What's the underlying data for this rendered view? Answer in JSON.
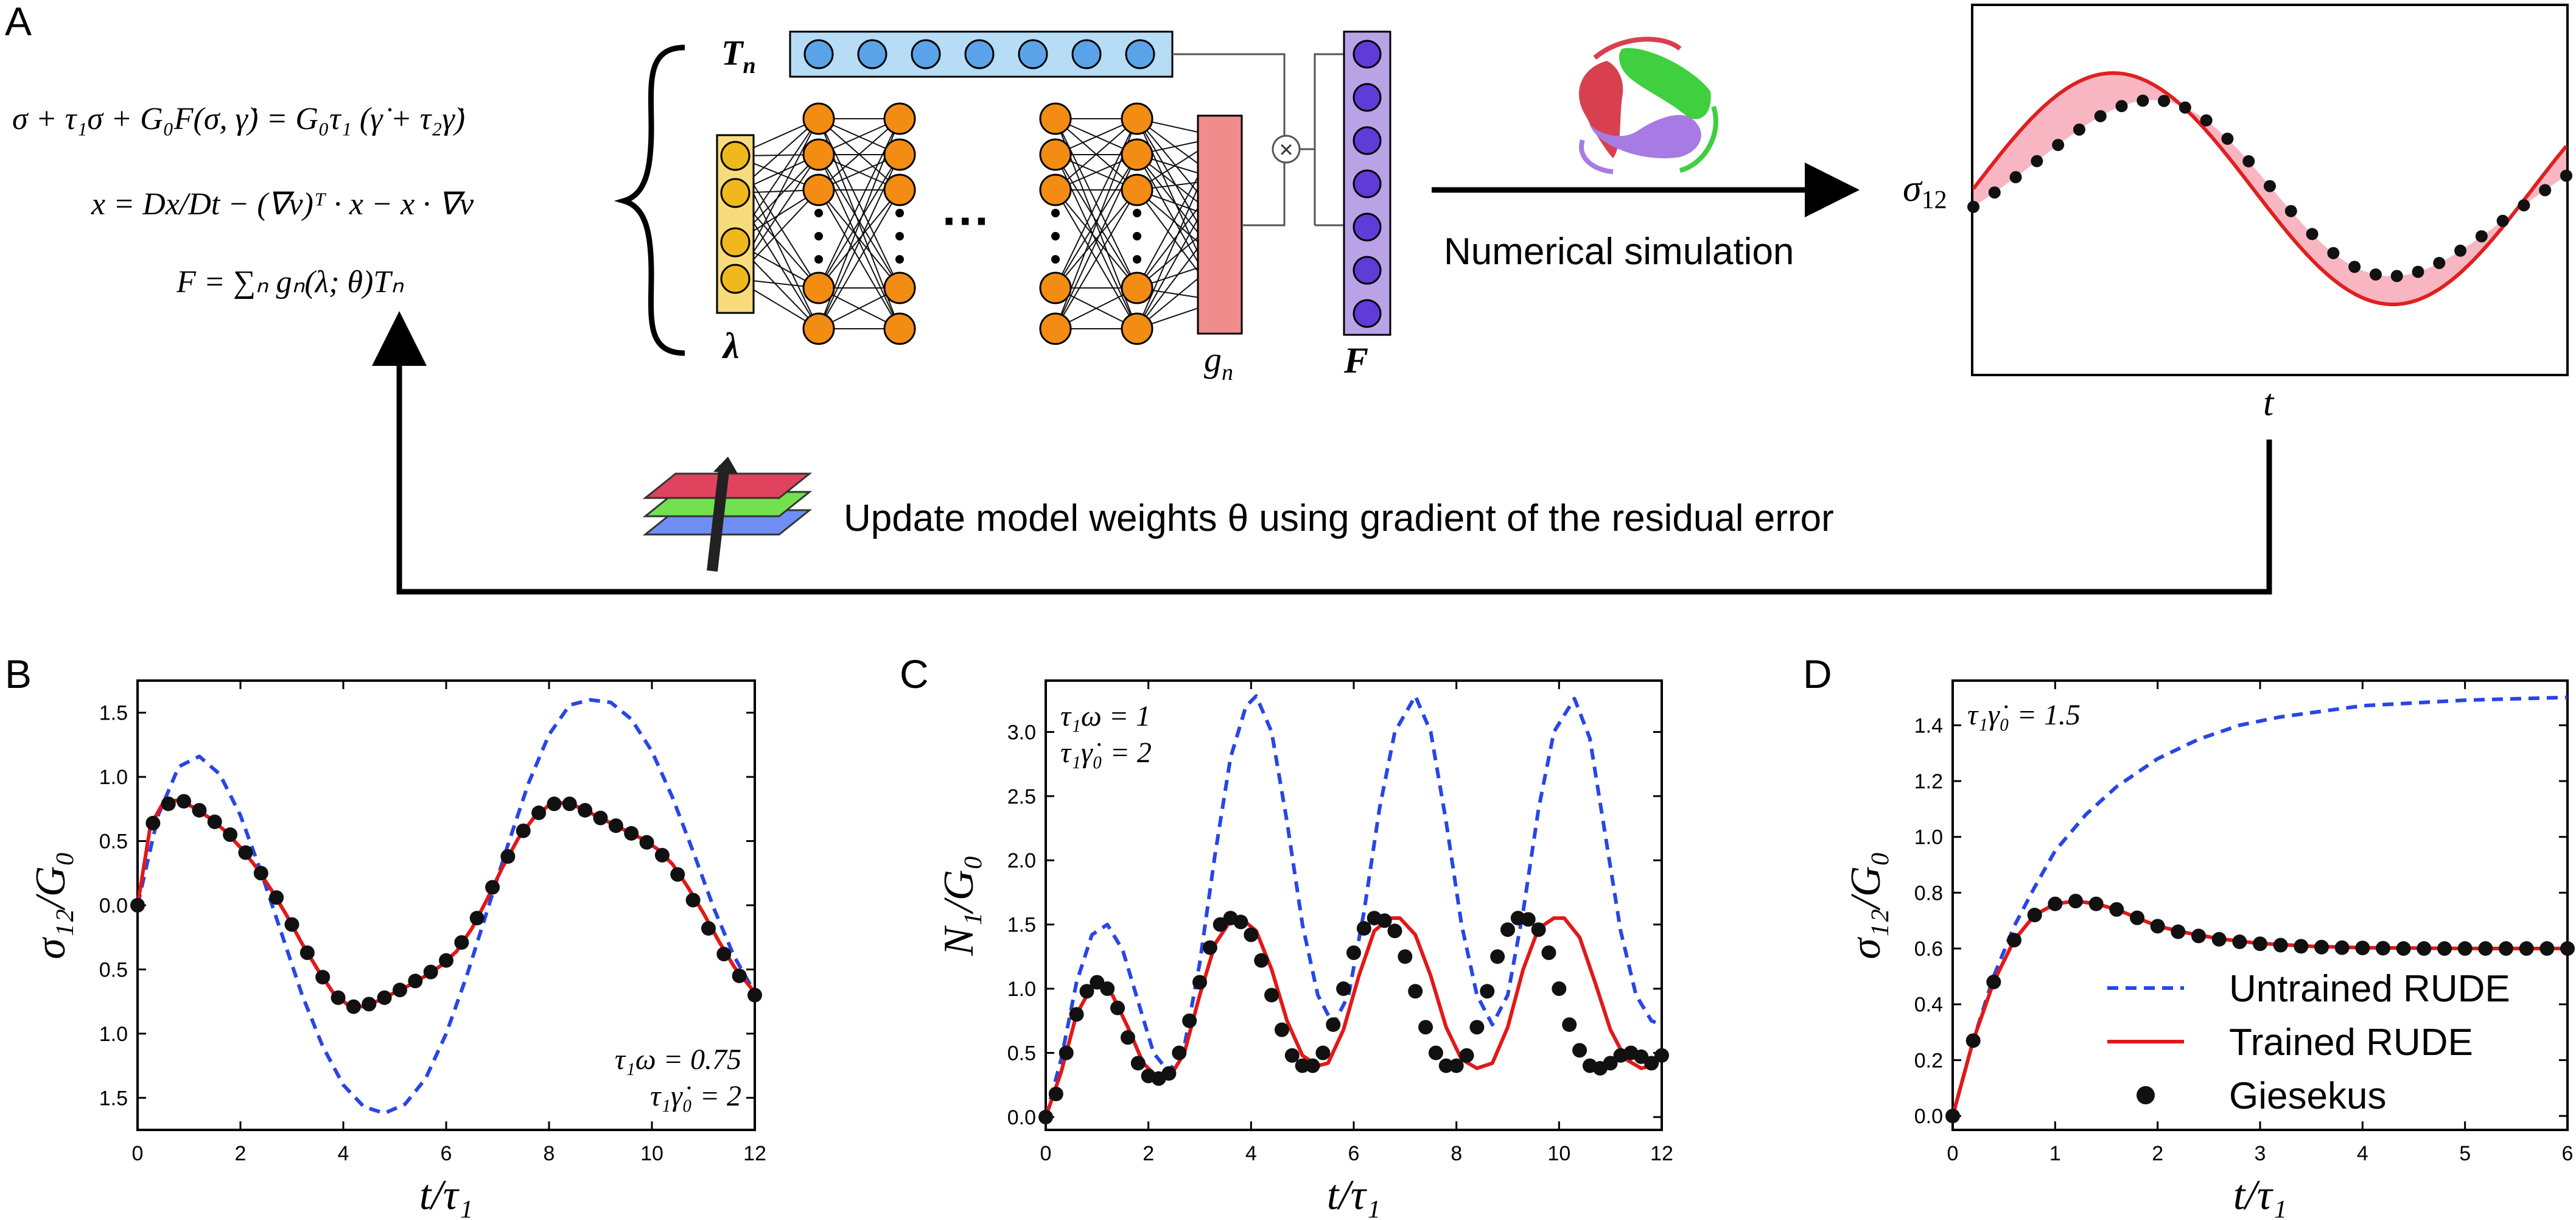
{
  "panel_letters": [
    "A",
    "B",
    "C",
    "D"
  ],
  "panel_a": {
    "equations": {
      "line1": "σ + τ₁σ + G₀F(σ, γ̇) = G₀τ₁ (γ̇ + τ₂γ̇)",
      "line2": "x = Dx/Dt − (∇v)ᵀ · x − x · ∇v",
      "line3": "F = ∑ₙ gₙ(λ; θ)Tₙ"
    },
    "labels": {
      "tn": "T",
      "tn_sub": "n",
      "lambda": "λ",
      "gn": "g",
      "gn_sub": "n",
      "f": "F",
      "dots": "···",
      "multiply": "×",
      "numerical_simulation": "Numerical simulation",
      "sigma12": "σ",
      "sigma12_sub": "12",
      "t": "t",
      "update_text": "Update model weights θ using gradient of the residual error"
    },
    "colors": {
      "tn_layer": "#b7dcf5",
      "tn_node": "#5aa3e8",
      "input_layer": "#f6dc7c",
      "input_node": "#f0b81c",
      "hidden_node": "#f28c13",
      "output_layer": "#f08c8c",
      "output_node": "#e2231a",
      "f_layer": "#b9a2e6",
      "f_node": "#5f3bd8",
      "fill_area": "#f7b6c2",
      "red_curve": "#e02020"
    }
  },
  "legend": {
    "untrained": "Untrained RUDE",
    "trained": "Trained RUDE",
    "giesekus": "Giesekus"
  },
  "series_colors": {
    "untrained": "#2846e6",
    "trained": "#e21818",
    "giesekus": "#111111"
  },
  "chart_data": [
    {
      "panel": "B",
      "type": "line",
      "xlabel": "t/τ₁",
      "ylabel": "σ₁₂/G₀",
      "xlim": [
        0,
        12
      ],
      "ylim": [
        -1.75,
        1.75
      ],
      "xticks": [
        0,
        2,
        4,
        6,
        8,
        10,
        12
      ],
      "yticks": [
        -1.5,
        -1.0,
        -0.5,
        0.0,
        0.5,
        1.0,
        1.5
      ],
      "ytick_labels": [
        "1.5",
        "1.0",
        "0.5",
        "0.0",
        "0.5",
        "1.0",
        "1.5"
      ],
      "annotations": [
        "τ₁ω = 0.75",
        "τ₁γ̇₀ = 2"
      ],
      "series": [
        {
          "name": "Untrained RUDE",
          "style": "dashed",
          "x": [
            0,
            0.4,
            0.8,
            1.2,
            1.6,
            2,
            2.4,
            2.8,
            3.2,
            3.6,
            4,
            4.4,
            4.8,
            5.2,
            5.6,
            6,
            6.4,
            6.8,
            7.2,
            7.6,
            8,
            8.4,
            8.8,
            9.2,
            9.6,
            10,
            10.4,
            10.8,
            11.2,
            11.6,
            12
          ],
          "y": [
            0,
            0.7,
            1.08,
            1.16,
            1.02,
            0.7,
            0.26,
            -0.22,
            -0.7,
            -1.1,
            -1.4,
            -1.57,
            -1.62,
            -1.55,
            -1.35,
            -1.0,
            -0.55,
            -0.04,
            0.47,
            0.95,
            1.33,
            1.56,
            1.6,
            1.58,
            1.45,
            1.2,
            0.84,
            0.42,
            -0.02,
            -0.4,
            -0.68
          ]
        },
        {
          "name": "Trained RUDE",
          "style": "solid",
          "x": [
            0,
            0.25,
            0.5,
            0.8,
            1.1,
            1.4,
            1.7,
            2,
            2.3,
            2.6,
            2.9,
            3.2,
            3.5,
            3.8,
            4.1,
            4.4,
            4.7,
            5,
            5.3,
            5.6,
            5.9,
            6.2,
            6.5,
            6.8,
            7.1,
            7.4,
            7.7,
            8,
            8.3,
            8.6,
            8.9,
            9.2,
            9.5,
            9.8,
            10.1,
            10.4,
            10.7,
            11,
            11.3,
            11.6,
            12
          ],
          "y": [
            0,
            0.62,
            0.8,
            0.82,
            0.76,
            0.68,
            0.58,
            0.45,
            0.3,
            0.12,
            -0.08,
            -0.3,
            -0.5,
            -0.68,
            -0.78,
            -0.79,
            -0.74,
            -0.68,
            -0.62,
            -0.55,
            -0.47,
            -0.36,
            -0.18,
            0.05,
            0.3,
            0.52,
            0.68,
            0.78,
            0.8,
            0.76,
            0.7,
            0.64,
            0.58,
            0.52,
            0.44,
            0.32,
            0.14,
            -0.06,
            -0.28,
            -0.48,
            -0.68
          ]
        },
        {
          "name": "Giesekus",
          "style": "markers",
          "x": [
            0,
            0.3,
            0.6,
            0.9,
            1.2,
            1.5,
            1.8,
            2.1,
            2.4,
            2.7,
            3.0,
            3.3,
            3.6,
            3.9,
            4.2,
            4.5,
            4.8,
            5.1,
            5.4,
            5.7,
            6.0,
            6.3,
            6.6,
            6.9,
            7.2,
            7.5,
            7.8,
            8.1,
            8.4,
            8.7,
            9.0,
            9.3,
            9.6,
            9.9,
            10.2,
            10.5,
            10.8,
            11.1,
            11.4,
            11.7,
            12
          ],
          "y": [
            0,
            0.64,
            0.79,
            0.81,
            0.74,
            0.65,
            0.55,
            0.41,
            0.25,
            0.06,
            -0.15,
            -0.37,
            -0.56,
            -0.72,
            -0.79,
            -0.77,
            -0.72,
            -0.66,
            -0.59,
            -0.52,
            -0.43,
            -0.29,
            -0.1,
            0.14,
            0.38,
            0.58,
            0.72,
            0.79,
            0.79,
            0.74,
            0.68,
            0.62,
            0.56,
            0.49,
            0.39,
            0.24,
            0.04,
            -0.18,
            -0.38,
            -0.55,
            -0.7
          ]
        }
      ]
    },
    {
      "panel": "C",
      "type": "line",
      "xlabel": "t/τ₁",
      "ylabel": "N₁/G₀",
      "xlim": [
        0,
        12
      ],
      "ylim": [
        -0.1,
        3.4
      ],
      "xticks": [
        0,
        2,
        4,
        6,
        8,
        10,
        12
      ],
      "yticks": [
        0,
        0.5,
        1.0,
        1.5,
        2.0,
        2.5,
        3.0
      ],
      "ytick_labels": [
        "0.0",
        "0.5",
        "1.0",
        "1.5",
        "2.0",
        "2.5",
        "3.0"
      ],
      "annotations": [
        "τ₁ω = 1",
        "τ₁γ̇₀ = 2"
      ],
      "series": [
        {
          "name": "Untrained RUDE",
          "style": "dashed",
          "x": [
            0,
            0.3,
            0.6,
            0.9,
            1.2,
            1.5,
            1.8,
            2.1,
            2.4,
            2.7,
            3.0,
            3.3,
            3.6,
            3.9,
            4.1,
            4.4,
            4.7,
            5.0,
            5.3,
            5.6,
            5.9,
            6.2,
            6.5,
            6.8,
            7.2,
            7.5,
            7.8,
            8.1,
            8.4,
            8.7,
            9.0,
            9.3,
            9.6,
            9.9,
            10.3,
            10.6,
            10.9,
            11.2,
            11.5,
            11.8,
            12
          ],
          "y": [
            0,
            0.45,
            1.05,
            1.42,
            1.5,
            1.3,
            0.9,
            0.5,
            0.35,
            0.55,
            1.2,
            2.05,
            2.8,
            3.2,
            3.28,
            3.0,
            2.3,
            1.5,
            0.95,
            0.72,
            0.95,
            1.6,
            2.4,
            3.0,
            3.28,
            3.0,
            2.3,
            1.5,
            0.95,
            0.72,
            0.95,
            1.6,
            2.4,
            3.0,
            3.26,
            2.95,
            2.2,
            1.45,
            0.95,
            0.75,
            0.72
          ]
        },
        {
          "name": "Trained RUDE",
          "style": "solid",
          "x": [
            0,
            0.3,
            0.6,
            0.9,
            1.0,
            1.3,
            1.6,
            1.9,
            2.2,
            2.4,
            2.7,
            3.0,
            3.3,
            3.6,
            3.8,
            4.1,
            4.4,
            4.7,
            5.0,
            5.3,
            5.5,
            5.8,
            6.1,
            6.4,
            6.7,
            6.9,
            7.2,
            7.5,
            7.8,
            8.1,
            8.4,
            8.7,
            9.0,
            9.3,
            9.6,
            9.9,
            10.1,
            10.4,
            10.7,
            11.0,
            11.3,
            11.6,
            11.8,
            12
          ],
          "y": [
            0,
            0.35,
            0.8,
            1.02,
            1.05,
            0.95,
            0.7,
            0.42,
            0.3,
            0.3,
            0.5,
            0.95,
            1.35,
            1.53,
            1.55,
            1.45,
            1.15,
            0.75,
            0.48,
            0.4,
            0.42,
            0.68,
            1.1,
            1.45,
            1.55,
            1.55,
            1.42,
            1.1,
            0.7,
            0.45,
            0.38,
            0.42,
            0.7,
            1.15,
            1.47,
            1.55,
            1.55,
            1.4,
            1.05,
            0.68,
            0.45,
            0.38,
            0.4,
            0.48
          ]
        },
        {
          "name": "Giesekus",
          "style": "markers",
          "x": [
            0,
            0.2,
            0.4,
            0.6,
            0.8,
            1.0,
            1.2,
            1.4,
            1.6,
            1.8,
            2.0,
            2.2,
            2.4,
            2.6,
            2.8,
            3.0,
            3.2,
            3.4,
            3.6,
            3.8,
            4.0,
            4.2,
            4.4,
            4.6,
            4.8,
            5.0,
            5.2,
            5.4,
            5.6,
            5.8,
            6.0,
            6.2,
            6.4,
            6.6,
            6.8,
            7.0,
            7.2,
            7.4,
            7.6,
            7.8,
            8.0,
            8.2,
            8.4,
            8.6,
            8.8,
            9.0,
            9.2,
            9.4,
            9.6,
            9.8,
            10.0,
            10.2,
            10.4,
            10.6,
            10.8,
            11.0,
            11.2,
            11.4,
            11.6,
            11.8,
            12.0
          ],
          "y": [
            0,
            0.18,
            0.5,
            0.8,
            0.98,
            1.05,
            1.0,
            0.85,
            0.62,
            0.42,
            0.32,
            0.3,
            0.34,
            0.5,
            0.75,
            1.05,
            1.32,
            1.5,
            1.55,
            1.52,
            1.42,
            1.22,
            0.95,
            0.68,
            0.48,
            0.4,
            0.4,
            0.5,
            0.72,
            1.0,
            1.28,
            1.47,
            1.55,
            1.53,
            1.45,
            1.25,
            0.98,
            0.7,
            0.5,
            0.4,
            0.4,
            0.48,
            0.7,
            0.98,
            1.25,
            1.46,
            1.55,
            1.54,
            1.46,
            1.28,
            1.0,
            0.72,
            0.52,
            0.4,
            0.38,
            0.42,
            0.48,
            0.5,
            0.47,
            0.42,
            0.48
          ]
        }
      ]
    },
    {
      "panel": "D",
      "type": "line",
      "xlabel": "t/τ₁",
      "ylabel": "σ₁₂/G₀",
      "xlim": [
        0,
        6
      ],
      "ylim": [
        -0.05,
        1.56
      ],
      "xticks": [
        0,
        1,
        2,
        3,
        4,
        5,
        6
      ],
      "yticks": [
        0,
        0.2,
        0.4,
        0.6,
        0.8,
        1.0,
        1.2,
        1.4
      ],
      "ytick_labels": [
        "0.0",
        "0.2",
        "0.4",
        "0.6",
        "0.8",
        "1.0",
        "1.2",
        "1.4"
      ],
      "annotations": [
        "τ₁γ̇₀ = 1.5"
      ],
      "legend_position": "lower-right",
      "series": [
        {
          "name": "Untrained RUDE",
          "style": "dashed",
          "x": [
            0,
            0.2,
            0.4,
            0.6,
            0.8,
            1.0,
            1.3,
            1.6,
            2.0,
            2.4,
            2.8,
            3.2,
            3.6,
            4.0,
            4.5,
            5.0,
            5.5,
            6.0
          ],
          "y": [
            0,
            0.27,
            0.5,
            0.68,
            0.82,
            0.95,
            1.08,
            1.18,
            1.28,
            1.35,
            1.4,
            1.43,
            1.45,
            1.47,
            1.48,
            1.49,
            1.495,
            1.5
          ]
        },
        {
          "name": "Trained RUDE",
          "style": "solid",
          "x": [
            0,
            0.2,
            0.4,
            0.6,
            0.8,
            1.0,
            1.2,
            1.4,
            1.6,
            1.8,
            2.0,
            2.3,
            2.6,
            3.0,
            3.5,
            4.0,
            5.0,
            6.0
          ],
          "y": [
            0,
            0.27,
            0.48,
            0.63,
            0.72,
            0.76,
            0.77,
            0.76,
            0.74,
            0.71,
            0.68,
            0.655,
            0.635,
            0.618,
            0.608,
            0.603,
            0.6,
            0.6
          ]
        },
        {
          "name": "Giesekus",
          "style": "markers",
          "x": [
            0,
            0.2,
            0.4,
            0.6,
            0.8,
            1.0,
            1.2,
            1.4,
            1.6,
            1.8,
            2.0,
            2.2,
            2.4,
            2.6,
            2.8,
            3.0,
            3.2,
            3.4,
            3.6,
            3.8,
            4.0,
            4.2,
            4.4,
            4.6,
            4.8,
            5.0,
            5.2,
            5.4,
            5.6,
            5.8,
            6.0
          ],
          "y": [
            0,
            0.27,
            0.48,
            0.63,
            0.72,
            0.76,
            0.77,
            0.76,
            0.74,
            0.71,
            0.68,
            0.66,
            0.645,
            0.633,
            0.624,
            0.617,
            0.612,
            0.608,
            0.605,
            0.603,
            0.602,
            0.601,
            0.6,
            0.6,
            0.6,
            0.6,
            0.6,
            0.6,
            0.6,
            0.6,
            0.6
          ]
        }
      ]
    }
  ]
}
